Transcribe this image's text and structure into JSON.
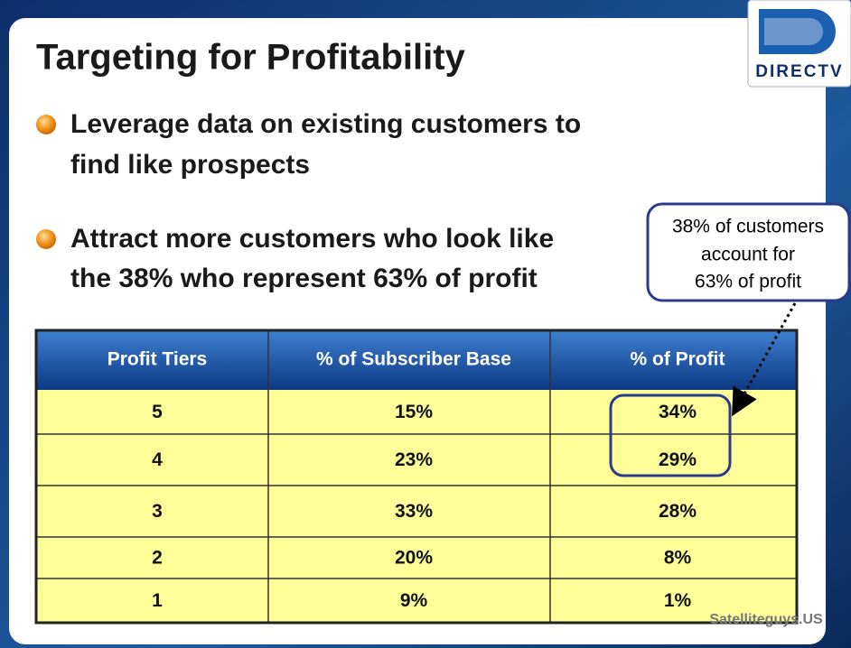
{
  "header": {
    "title": "Targeting for Profitability",
    "logo": "DIRECTV"
  },
  "bullets": [
    {
      "lines": [
        "Leverage data on existing customers to",
        "find like prospects"
      ]
    },
    {
      "lines": [
        "Attract more customers who look like",
        "the 38% who represent 63% of profit"
      ]
    }
  ],
  "callout": {
    "lines": [
      "38% of customers",
      "account for",
      "63% of profit"
    ]
  },
  "table": {
    "columns": [
      "Profit Tiers",
      "% of Subscriber Base",
      "% of Profit"
    ],
    "rows": [
      [
        "5",
        "15%",
        "34%"
      ],
      [
        "4",
        "23%",
        "29%"
      ],
      [
        "3",
        "33%",
        "28%"
      ],
      [
        "2",
        "20%",
        "8%"
      ],
      [
        "1",
        "9%",
        "1%"
      ]
    ]
  },
  "watermark": "Satelliteguys.US"
}
